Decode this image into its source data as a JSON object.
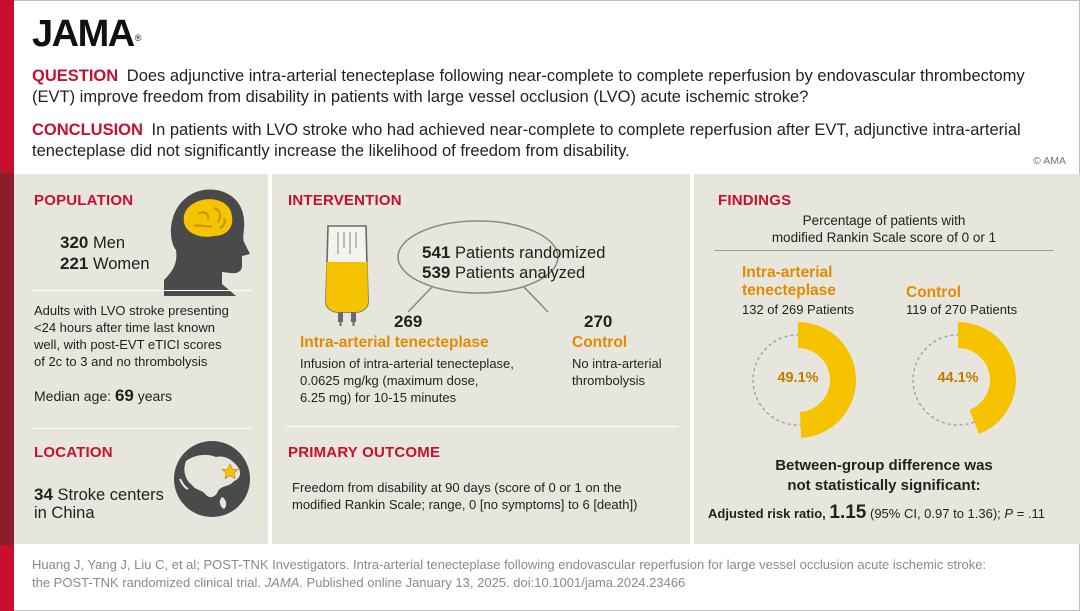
{
  "brand": {
    "name": "JAMA",
    "mark": "®"
  },
  "question": {
    "label": "QUESTION",
    "text": "Does adjunctive intra-arterial tenecteplase following near-complete to complete reperfusion by endovascular thrombectomy (EVT) improve freedom from disability in patients with large vessel occlusion (LVO) acute ischemic stroke?"
  },
  "conclusion": {
    "label": "CONCLUSION",
    "text": "In patients with LVO stroke who had achieved near-complete to complete reperfusion after EVT, adjunctive intra-arterial tenecteplase did not significantly increase the likelihood of freedom from disability."
  },
  "copyright": "© AMA",
  "population": {
    "title": "POPULATION",
    "men_count": "320",
    "men_label": "Men",
    "women_count": "221",
    "women_label": "Women",
    "description": [
      "Adults with LVO stroke presenting",
      "<24 hours after time last known",
      "well, with post-EVT eTICI scores",
      "of 2c to 3 and no thrombolysis"
    ],
    "median_age_label": "Median age:",
    "median_age_value": "69",
    "median_age_unit": "years"
  },
  "location": {
    "title": "LOCATION",
    "count": "34",
    "line1": "Stroke centers",
    "line2": "in China"
  },
  "intervention": {
    "title": "INTERVENTION",
    "randomized_count": "541",
    "randomized_label": "Patients randomized",
    "analyzed_count": "539",
    "analyzed_label": "Patients analyzed",
    "arm1_n": "269",
    "arm1_name": "Intra-arterial tenecteplase",
    "arm1_desc": [
      "Infusion of intra-arterial tenecteplase,",
      "0.0625 mg/kg (maximum dose,",
      "6.25 mg) for 10-15 minutes"
    ],
    "arm2_n": "270",
    "arm2_name": "Control",
    "arm2_desc": [
      "No intra-arterial",
      "thrombolysis"
    ]
  },
  "primary_outcome": {
    "title": "PRIMARY OUTCOME",
    "text": [
      "Freedom from disability at 90 days (score of 0 or 1 on the",
      "modified Rankin Scale; range, 0 [no symptoms] to 6 [death])"
    ]
  },
  "findings": {
    "title": "FINDINGS",
    "subtitle": [
      "Percentage of patients with",
      "modified Rankin Scale score of 0 or 1"
    ],
    "group1": {
      "name": [
        "Intra-arterial",
        "tenecteplase"
      ],
      "count": "132 of 269 Patients",
      "percent_label": "49.1%",
      "percent": 49.1
    },
    "group2": {
      "name": [
        "Control"
      ],
      "count": "119 of 270 Patients",
      "percent_label": "44.1%",
      "percent": 44.1
    },
    "difference": [
      "Between-group difference was",
      "not statistically significant:"
    ],
    "ratio_label": "Adjusted risk ratio,",
    "ratio_value": "1.15",
    "ratio_ci": "(95% CI, 0.97 to 1.36);",
    "p_label": "P",
    "p_value": "= .11"
  },
  "citation": {
    "line1": "Huang J, Yang J, Liu C, et al; POST-TNK Investigators. Intra-arterial tenecteplase following endovascular reperfusion for large vessel occlusion acute ischemic stroke:",
    "line2_pre": "the POST-TNK randomized clinical trial.",
    "journal": "JAMA",
    "line2_post": ". Published online January 13, 2025. doi:10.1001/jama.2024.23466"
  },
  "colors": {
    "accent_red": "#c8102e",
    "dark_red": "#8c1d2a",
    "gold": "#f6c300",
    "orange_text": "#e28a00",
    "panel_bg": "#e7e6dd"
  },
  "icons": [
    "head-brain-icon",
    "iv-bag-icon",
    "globe-icon",
    "star-icon"
  ]
}
